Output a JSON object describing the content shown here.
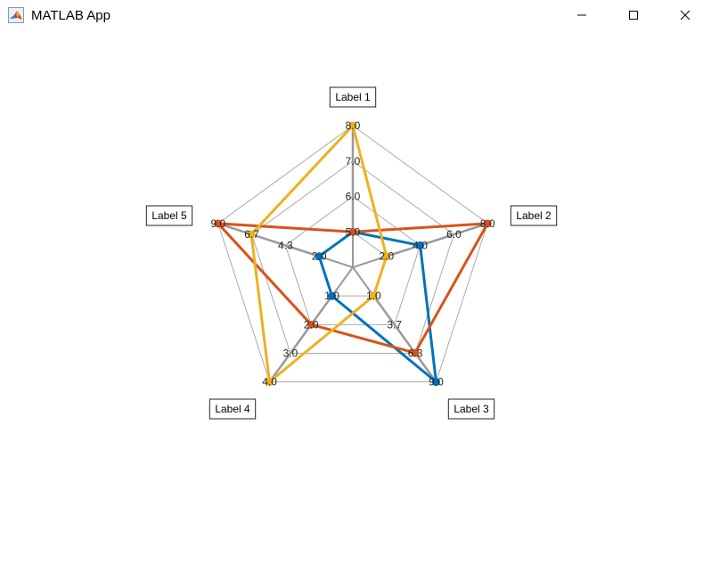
{
  "window": {
    "title": "MATLAB App",
    "icon": "matlab-logo-icon",
    "controls": [
      "minimize-icon",
      "maximize-icon",
      "close-icon"
    ]
  },
  "chart_data": {
    "type": "radar",
    "axis_labels": [
      "Label 1",
      "Label 2",
      "Label 3",
      "Label 4",
      "Label 5"
    ],
    "axis_ticks": [
      [
        "5.0",
        "6.0",
        "7.0",
        "8.0"
      ],
      [
        "2.0",
        "4.0",
        "6.0",
        "8.0"
      ],
      [
        "1.0",
        "3.7",
        "6.3",
        "9.0"
      ],
      [
        "1.0",
        "2.0",
        "3.0",
        "4.0"
      ],
      [
        "2.0",
        "4.3",
        "6.7",
        "9.0"
      ]
    ],
    "axis_ranges": [
      [
        5,
        8
      ],
      [
        2,
        8
      ],
      [
        1,
        9
      ],
      [
        1,
        4
      ],
      [
        2,
        9
      ]
    ],
    "series": [
      {
        "color": "#0072BD",
        "values": [
          5,
          4,
          9,
          1,
          2
        ]
      },
      {
        "color": "#D95319",
        "values": [
          5,
          8,
          6.3,
          2,
          9
        ]
      },
      {
        "color": "#EDB120",
        "values": [
          8,
          2,
          1,
          4,
          6.7
        ]
      }
    ],
    "axis_color": "#999999",
    "grid_color": "#aaaaaa"
  }
}
